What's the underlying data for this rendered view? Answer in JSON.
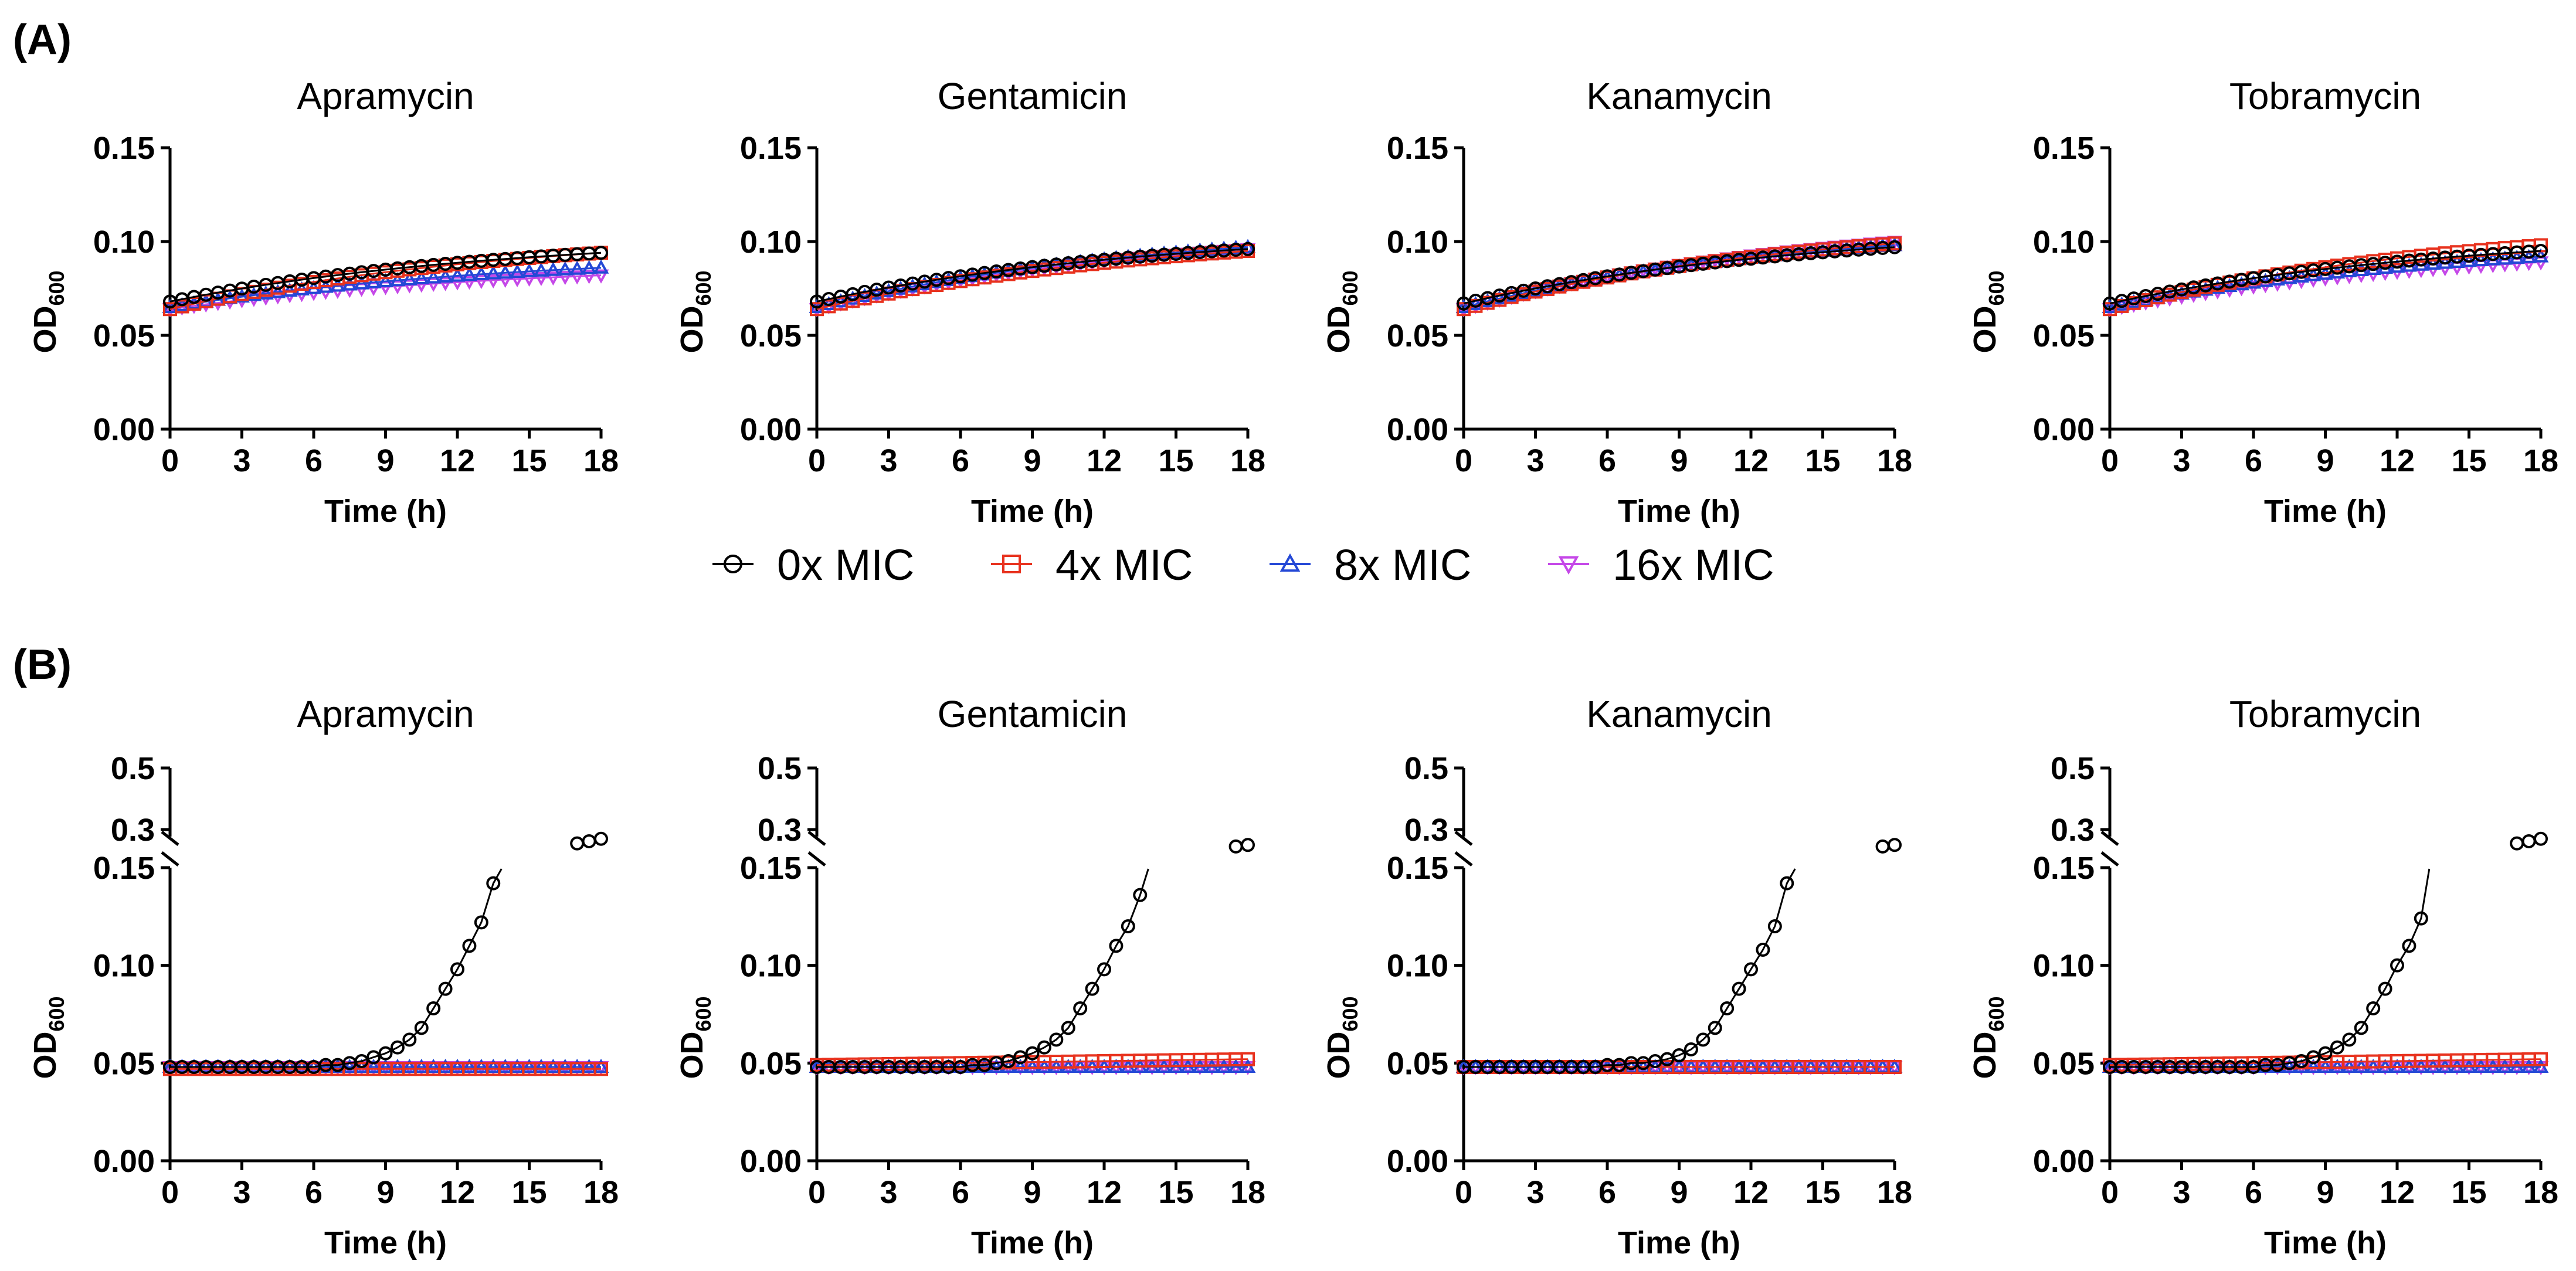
{
  "panel_labels": [
    "(A)",
    "(B)"
  ],
  "legend": [
    {
      "label": "0x MIC",
      "color": "#000000",
      "marker": "circle"
    },
    {
      "label": "4x MIC",
      "color": "#e8321e",
      "marker": "square"
    },
    {
      "label": "8x MIC",
      "color": "#2448d6",
      "marker": "triangle-up"
    },
    {
      "label": "16x MIC",
      "color": "#c548e8",
      "marker": "triangle-down"
    }
  ],
  "chart_data": [
    {
      "panel": "A",
      "type": "line",
      "title": "Apramycin",
      "xlabel": "Time (h)",
      "ylabel": "OD",
      "ylabel_sub": "600",
      "xlim": [
        0,
        18
      ],
      "ylim": [
        0,
        0.15
      ],
      "xticks": [
        "0",
        "3",
        "6",
        "9",
        "12",
        "15",
        "18"
      ],
      "yticks": [
        "0.00",
        "0.05",
        "0.10",
        "0.15"
      ],
      "series": [
        {
          "name": "0x MIC",
          "start": 0.068,
          "end": 0.094
        },
        {
          "name": "4x MIC",
          "start": 0.064,
          "end": 0.094
        },
        {
          "name": "8x MIC",
          "start": 0.065,
          "end": 0.086
        },
        {
          "name": "16x MIC",
          "start": 0.064,
          "end": 0.082
        }
      ]
    },
    {
      "panel": "A",
      "type": "line",
      "title": "Gentamicin",
      "xlabel": "Time (h)",
      "ylabel": "OD",
      "ylabel_sub": "600",
      "xlim": [
        0,
        18
      ],
      "ylim": [
        0,
        0.15
      ],
      "xticks": [
        "0",
        "3",
        "6",
        "9",
        "12",
        "15",
        "18"
      ],
      "yticks": [
        "0.00",
        "0.05",
        "0.10",
        "0.15"
      ],
      "series": [
        {
          "name": "0x MIC",
          "start": 0.068,
          "end": 0.096
        },
        {
          "name": "4x MIC",
          "start": 0.064,
          "end": 0.095
        },
        {
          "name": "8x MIC",
          "start": 0.065,
          "end": 0.097
        },
        {
          "name": "16x MIC",
          "start": 0.064,
          "end": 0.096
        }
      ]
    },
    {
      "panel": "A",
      "type": "line",
      "title": "Kanamycin",
      "xlabel": "Time (h)",
      "ylabel": "OD",
      "ylabel_sub": "600",
      "xlim": [
        0,
        18
      ],
      "ylim": [
        0,
        0.15
      ],
      "xticks": [
        "0",
        "3",
        "6",
        "9",
        "12",
        "15",
        "18"
      ],
      "yticks": [
        "0.00",
        "0.05",
        "0.10",
        "0.15"
      ],
      "series": [
        {
          "name": "0x MIC",
          "start": 0.067,
          "end": 0.097
        },
        {
          "name": "4x MIC",
          "start": 0.064,
          "end": 0.099
        },
        {
          "name": "8x MIC",
          "start": 0.065,
          "end": 0.098
        },
        {
          "name": "16x MIC",
          "start": 0.064,
          "end": 0.1
        }
      ]
    },
    {
      "panel": "A",
      "type": "line",
      "title": "Tobramycin",
      "xlabel": "Time (h)",
      "ylabel": "OD",
      "ylabel_sub": "600",
      "xlim": [
        0,
        18
      ],
      "ylim": [
        0,
        0.15
      ],
      "xticks": [
        "0",
        "3",
        "6",
        "9",
        "12",
        "15",
        "18"
      ],
      "yticks": [
        "0.00",
        "0.05",
        "0.10",
        "0.15"
      ],
      "series": [
        {
          "name": "0x MIC",
          "start": 0.067,
          "end": 0.095
        },
        {
          "name": "4x MIC",
          "start": 0.064,
          "end": 0.098
        },
        {
          "name": "8x MIC",
          "start": 0.065,
          "end": 0.092
        },
        {
          "name": "16x MIC",
          "start": 0.064,
          "end": 0.089
        }
      ]
    },
    {
      "panel": "B",
      "type": "line",
      "title": "Apramycin",
      "xlabel": "Time (h)",
      "ylabel": "OD",
      "ylabel_sub": "600",
      "xlim": [
        0,
        18
      ],
      "ylim": [
        0,
        0.5
      ],
      "y_axis_break": [
        0.15,
        0.3
      ],
      "xticks": [
        "0",
        "3",
        "6",
        "9",
        "12",
        "15",
        "18"
      ],
      "yticks": [
        "0.00",
        "0.05",
        "0.10",
        "0.15",
        "0.3",
        "0.5"
      ],
      "series": [
        {
          "name": "0x MIC",
          "x": [
            0,
            0.5,
            1,
            1.5,
            2,
            2.5,
            3,
            3.5,
            4,
            4.5,
            5,
            5.5,
            6,
            6.5,
            7,
            7.5,
            8,
            8.5,
            9,
            9.5,
            10,
            10.5,
            11,
            11.5,
            12,
            12.5,
            13,
            13.5,
            17,
            17.5,
            18
          ],
          "y": [
            0.048,
            0.048,
            0.048,
            0.048,
            0.048,
            0.048,
            0.048,
            0.048,
            0.048,
            0.048,
            0.048,
            0.048,
            0.048,
            0.049,
            0.049,
            0.05,
            0.051,
            0.053,
            0.055,
            0.058,
            0.062,
            0.068,
            0.078,
            0.088,
            0.098,
            0.11,
            0.122,
            0.142,
            0.255,
            0.262,
            0.27
          ]
        },
        {
          "name": "4x MIC",
          "x": [
            0,
            18
          ],
          "y": [
            0.047,
            0.047
          ]
        },
        {
          "name": "8x MIC",
          "x": [
            0,
            18
          ],
          "y": [
            0.048,
            0.048
          ]
        },
        {
          "name": "16x MIC",
          "x": [
            0,
            18
          ],
          "y": [
            0.048,
            0.048
          ]
        }
      ]
    },
    {
      "panel": "B",
      "type": "line",
      "title": "Gentamicin",
      "xlabel": "Time (h)",
      "ylabel": "OD",
      "ylabel_sub": "600",
      "xlim": [
        0,
        18
      ],
      "ylim": [
        0,
        0.5
      ],
      "y_axis_break": [
        0.15,
        0.3
      ],
      "xticks": [
        "0",
        "3",
        "6",
        "9",
        "12",
        "15",
        "18"
      ],
      "yticks": [
        "0.00",
        "0.05",
        "0.10",
        "0.15",
        "0.3",
        "0.5"
      ],
      "series": [
        {
          "name": "0x MIC",
          "x": [
            0,
            0.5,
            1,
            1.5,
            2,
            2.5,
            3,
            3.5,
            4,
            4.5,
            5,
            5.5,
            6,
            6.5,
            7,
            7.5,
            8,
            8.5,
            9,
            9.5,
            10,
            10.5,
            11,
            11.5,
            12,
            12.5,
            13,
            13.5,
            17.5,
            18
          ],
          "y": [
            0.048,
            0.048,
            0.048,
            0.048,
            0.048,
            0.048,
            0.048,
            0.048,
            0.048,
            0.048,
            0.048,
            0.048,
            0.048,
            0.049,
            0.049,
            0.05,
            0.051,
            0.053,
            0.055,
            0.058,
            0.062,
            0.068,
            0.078,
            0.088,
            0.098,
            0.11,
            0.12,
            0.136,
            0.245,
            0.25
          ]
        },
        {
          "name": "4x MIC",
          "x": [
            0,
            18
          ],
          "y": [
            0.049,
            0.052
          ]
        },
        {
          "name": "8x MIC",
          "x": [
            0,
            18
          ],
          "y": [
            0.048,
            0.048
          ]
        },
        {
          "name": "16x MIC",
          "x": [
            0,
            18
          ],
          "y": [
            0.048,
            0.048
          ]
        }
      ]
    },
    {
      "panel": "B",
      "type": "line",
      "title": "Kanamycin",
      "xlabel": "Time (h)",
      "ylabel": "OD",
      "ylabel_sub": "600",
      "xlim": [
        0,
        18
      ],
      "ylim": [
        0,
        0.5
      ],
      "y_axis_break": [
        0.15,
        0.3
      ],
      "xticks": [
        "0",
        "3",
        "6",
        "9",
        "12",
        "15",
        "18"
      ],
      "yticks": [
        "0.00",
        "0.05",
        "0.10",
        "0.15",
        "0.3",
        "0.5"
      ],
      "series": [
        {
          "name": "0x MIC",
          "x": [
            0,
            0.5,
            1,
            1.5,
            2,
            2.5,
            3,
            3.5,
            4,
            4.5,
            5,
            5.5,
            6,
            6.5,
            7,
            7.5,
            8,
            8.5,
            9,
            9.5,
            10,
            10.5,
            11,
            11.5,
            12,
            12.5,
            13,
            13.5,
            17.5,
            18
          ],
          "y": [
            0.048,
            0.048,
            0.048,
            0.048,
            0.048,
            0.048,
            0.048,
            0.048,
            0.048,
            0.048,
            0.048,
            0.048,
            0.049,
            0.049,
            0.05,
            0.05,
            0.051,
            0.052,
            0.054,
            0.057,
            0.062,
            0.068,
            0.078,
            0.088,
            0.098,
            0.108,
            0.12,
            0.142,
            0.245,
            0.25
          ]
        },
        {
          "name": "4x MIC",
          "x": [
            0,
            18
          ],
          "y": [
            0.048,
            0.048
          ]
        },
        {
          "name": "8x MIC",
          "x": [
            0,
            18
          ],
          "y": [
            0.048,
            0.048
          ]
        },
        {
          "name": "16x MIC",
          "x": [
            0,
            18
          ],
          "y": [
            0.048,
            0.048
          ]
        }
      ]
    },
    {
      "panel": "B",
      "type": "line",
      "title": "Tobramycin",
      "xlabel": "Time (h)",
      "ylabel": "OD",
      "ylabel_sub": "600",
      "xlim": [
        0,
        18
      ],
      "ylim": [
        0,
        0.5
      ],
      "y_axis_break": [
        0.15,
        0.3
      ],
      "xticks": [
        "0",
        "3",
        "6",
        "9",
        "12",
        "15",
        "18"
      ],
      "yticks": [
        "0.00",
        "0.05",
        "0.10",
        "0.15",
        "0.3",
        "0.5"
      ],
      "series": [
        {
          "name": "0x MIC",
          "x": [
            0,
            0.5,
            1,
            1.5,
            2,
            2.5,
            3,
            3.5,
            4,
            4.5,
            5,
            5.5,
            6,
            6.5,
            7,
            7.5,
            8,
            8.5,
            9,
            9.5,
            10,
            10.5,
            11,
            11.5,
            12,
            12.5,
            13,
            17,
            17.5,
            18
          ],
          "y": [
            0.048,
            0.048,
            0.048,
            0.048,
            0.048,
            0.048,
            0.048,
            0.048,
            0.048,
            0.048,
            0.048,
            0.048,
            0.048,
            0.049,
            0.049,
            0.05,
            0.051,
            0.053,
            0.055,
            0.058,
            0.062,
            0.068,
            0.078,
            0.088,
            0.1,
            0.11,
            0.124,
            0.255,
            0.262,
            0.27
          ]
        },
        {
          "name": "4x MIC",
          "x": [
            0,
            18
          ],
          "y": [
            0.049,
            0.052
          ]
        },
        {
          "name": "8x MIC",
          "x": [
            0,
            18
          ],
          "y": [
            0.048,
            0.048
          ]
        },
        {
          "name": "16x MIC",
          "x": [
            0,
            18
          ],
          "y": [
            0.048,
            0.048
          ]
        }
      ]
    }
  ]
}
